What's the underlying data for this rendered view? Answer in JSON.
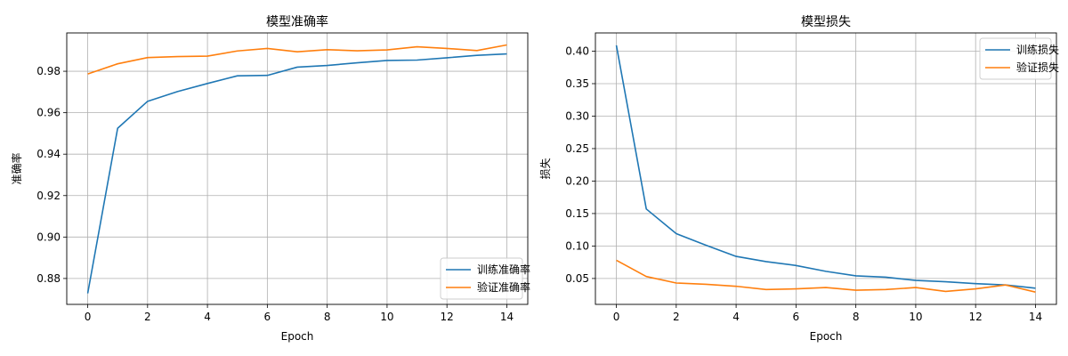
{
  "chart_data": [
    {
      "type": "line",
      "title": "模型准确率",
      "xlabel": "Epoch",
      "ylabel": "准确率",
      "x": [
        0,
        1,
        2,
        3,
        4,
        5,
        6,
        7,
        8,
        9,
        10,
        11,
        12,
        13,
        14
      ],
      "xticks": [
        0,
        2,
        4,
        6,
        8,
        10,
        12,
        14
      ],
      "xlim": [
        -0.7,
        14.7
      ],
      "yticks": [
        0.88,
        0.9,
        0.92,
        0.94,
        0.96,
        0.98
      ],
      "ytick_labels": [
        "0.88",
        "0.90",
        "0.92",
        "0.94",
        "0.96",
        "0.98"
      ],
      "ylim": [
        0.8675,
        0.9985
      ],
      "grid": true,
      "legend_position": "lower-right",
      "series": [
        {
          "name": "训练准确率",
          "color": "#1f77b4",
          "values": [
            0.8728,
            0.9525,
            0.9655,
            0.9702,
            0.9741,
            0.9778,
            0.978,
            0.982,
            0.9828,
            0.9841,
            0.9852,
            0.9854,
            0.9865,
            0.9877,
            0.9884
          ]
        },
        {
          "name": "验证准确率",
          "color": "#ff7f0e",
          "values": [
            0.9787,
            0.9836,
            0.9866,
            0.9871,
            0.9873,
            0.9898,
            0.991,
            0.9894,
            0.9904,
            0.9899,
            0.9903,
            0.9918,
            0.991,
            0.99,
            0.9927
          ]
        }
      ]
    },
    {
      "type": "line",
      "title": "模型损失",
      "xlabel": "Epoch",
      "ylabel": "损失",
      "x": [
        0,
        1,
        2,
        3,
        4,
        5,
        6,
        7,
        8,
        9,
        10,
        11,
        12,
        13,
        14
      ],
      "xticks": [
        0,
        2,
        4,
        6,
        8,
        10,
        12,
        14
      ],
      "xlim": [
        -0.7,
        14.7
      ],
      "yticks": [
        0.05,
        0.1,
        0.15,
        0.2,
        0.25,
        0.3,
        0.35,
        0.4
      ],
      "ytick_labels": [
        "0.05",
        "0.10",
        "0.15",
        "0.20",
        "0.25",
        "0.30",
        "0.35",
        "0.40"
      ],
      "ylim": [
        0.0101,
        0.4281
      ],
      "grid": true,
      "legend_position": "upper-right",
      "series": [
        {
          "name": "训练损失",
          "color": "#1f77b4",
          "values": [
            0.409,
            0.157,
            0.119,
            0.101,
            0.084,
            0.076,
            0.07,
            0.061,
            0.054,
            0.052,
            0.047,
            0.045,
            0.042,
            0.04,
            0.035
          ]
        },
        {
          "name": "验证损失",
          "color": "#ff7f0e",
          "values": [
            0.078,
            0.053,
            0.043,
            0.041,
            0.038,
            0.033,
            0.034,
            0.036,
            0.032,
            0.033,
            0.036,
            0.03,
            0.034,
            0.04,
            0.029
          ]
        }
      ]
    }
  ]
}
